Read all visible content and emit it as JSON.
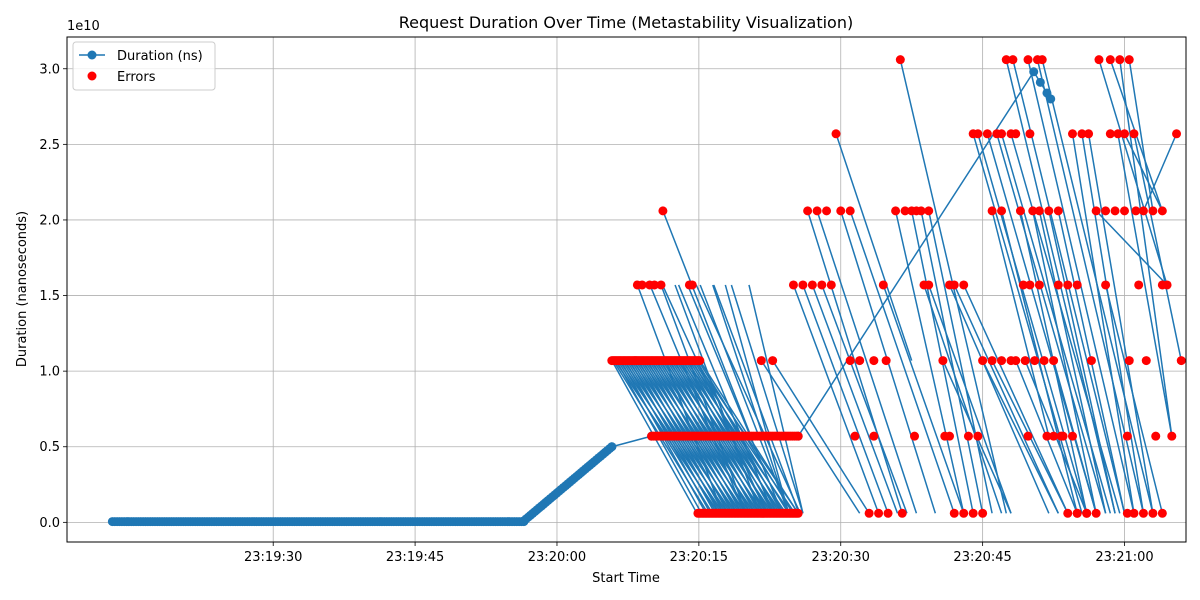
{
  "chart_data": {
    "type": "line",
    "title": "Request Duration Over Time (Metastability Visualization)",
    "xlabel": "Start Time",
    "ylabel": "Duration (nanoseconds)",
    "y_offset_label": "1e10",
    "x_tick_labels": [
      "23:19:30",
      "23:19:45",
      "23:20:00",
      "23:20:15",
      "23:20:30",
      "23:20:45",
      "23:21:00"
    ],
    "y_tick_labels": [
      "0.0",
      "0.5",
      "1.0",
      "1.5",
      "2.0",
      "2.5",
      "3.0"
    ],
    "x_ticks_seconds": [
      30,
      45,
      60,
      75,
      90,
      105,
      120
    ],
    "y_ticks": [
      0.0,
      0.5,
      1.0,
      1.5,
      2.0,
      2.5,
      3.0
    ],
    "xlim_seconds": [
      8.2,
      126.5
    ],
    "ylim": [
      -0.13,
      3.21
    ],
    "grid": true,
    "legend_position": "top-left",
    "series": [
      {
        "name": "Duration (ns)",
        "color": "#1f77b4",
        "marker": "circle",
        "baseline_phase": {
          "x_start": 13,
          "x_end": 56.5,
          "y": 0.005
        },
        "ramp_phase": {
          "x_start": 56.5,
          "x_end": 65.8,
          "y_start": 0.01,
          "y_end": 0.5
        },
        "points": [
          {
            "x": 65.8,
            "y": 0.5
          },
          {
            "x": 70.0,
            "y": 0.57
          },
          {
            "x": 80.0,
            "y": 0.57
          },
          {
            "x": 85.5,
            "y": 0.57
          },
          {
            "x": 110.4,
            "y": 2.98
          },
          {
            "x": 111.1,
            "y": 2.91
          },
          {
            "x": 111.8,
            "y": 2.84
          },
          {
            "x": 112.2,
            "y": 2.8
          }
        ],
        "collapse_segments": [
          {
            "x_start": 65.8,
            "x_end": 85.5,
            "y_start": 1.07,
            "y_end": 0.06,
            "count": 60
          },
          {
            "x_start": 68.5,
            "x_end": 84.5,
            "y_start": 1.57,
            "y_end": 0.06,
            "count": 8
          },
          {
            "x_start": 71.0,
            "x_end": 86.0,
            "y_start": 1.57,
            "y_end": 0.06,
            "count": 6
          }
        ]
      },
      {
        "name": "Errors",
        "color": "#ff0000",
        "marker": "circle",
        "bands": [
          {
            "y": 1.07,
            "x_start": 65.8,
            "x_end": 75.1,
            "count": 70
          },
          {
            "y": 0.57,
            "x_start": 70.0,
            "x_end": 85.5,
            "count": 80
          },
          {
            "y": 0.06,
            "x_start": 74.9,
            "x_end": 85.5,
            "count": 70
          }
        ],
        "points": [
          {
            "x": 68.5,
            "y": 1.57
          },
          {
            "x": 69.0,
            "y": 1.57
          },
          {
            "x": 69.8,
            "y": 1.57
          },
          {
            "x": 70.3,
            "y": 1.57
          },
          {
            "x": 71.0,
            "y": 1.57
          },
          {
            "x": 74.0,
            "y": 1.57
          },
          {
            "x": 74.3,
            "y": 1.57
          },
          {
            "x": 71.2,
            "y": 2.06
          },
          {
            "x": 81.6,
            "y": 1.07
          },
          {
            "x": 82.8,
            "y": 1.07
          },
          {
            "x": 85.0,
            "y": 1.57
          },
          {
            "x": 86.0,
            "y": 1.57
          },
          {
            "x": 87.0,
            "y": 1.57
          },
          {
            "x": 88.0,
            "y": 1.57
          },
          {
            "x": 89.0,
            "y": 1.57
          },
          {
            "x": 86.5,
            "y": 2.06
          },
          {
            "x": 87.5,
            "y": 2.06
          },
          {
            "x": 88.5,
            "y": 2.06
          },
          {
            "x": 90.0,
            "y": 2.06
          },
          {
            "x": 91.0,
            "y": 2.06
          },
          {
            "x": 89.5,
            "y": 2.57
          },
          {
            "x": 91.0,
            "y": 1.07
          },
          {
            "x": 92.0,
            "y": 1.07
          },
          {
            "x": 93.5,
            "y": 1.07
          },
          {
            "x": 94.8,
            "y": 1.07
          },
          {
            "x": 91.5,
            "y": 0.57
          },
          {
            "x": 93.5,
            "y": 0.57
          },
          {
            "x": 93.0,
            "y": 0.06
          },
          {
            "x": 94.0,
            "y": 0.06
          },
          {
            "x": 95.0,
            "y": 0.06
          },
          {
            "x": 96.5,
            "y": 0.06
          },
          {
            "x": 94.5,
            "y": 1.57
          },
          {
            "x": 95.8,
            "y": 2.06
          },
          {
            "x": 96.8,
            "y": 2.06
          },
          {
            "x": 97.5,
            "y": 2.06
          },
          {
            "x": 98.0,
            "y": 2.06
          },
          {
            "x": 98.5,
            "y": 2.06
          },
          {
            "x": 99.3,
            "y": 2.06
          },
          {
            "x": 96.3,
            "y": 3.06
          },
          {
            "x": 97.8,
            "y": 0.57
          },
          {
            "x": 98.8,
            "y": 1.57
          },
          {
            "x": 99.3,
            "y": 1.57
          },
          {
            "x": 100.8,
            "y": 1.07
          },
          {
            "x": 101.0,
            "y": 0.57
          },
          {
            "x": 101.5,
            "y": 0.57
          },
          {
            "x": 102.0,
            "y": 0.06
          },
          {
            "x": 103.0,
            "y": 0.06
          },
          {
            "x": 104.0,
            "y": 0.06
          },
          {
            "x": 105.0,
            "y": 0.06
          },
          {
            "x": 101.5,
            "y": 1.57
          },
          {
            "x": 102.0,
            "y": 1.57
          },
          {
            "x": 103.0,
            "y": 1.57
          },
          {
            "x": 103.5,
            "y": 0.57
          },
          {
            "x": 104.5,
            "y": 0.57
          },
          {
            "x": 105.0,
            "y": 1.07
          },
          {
            "x": 106.0,
            "y": 1.07
          },
          {
            "x": 107.0,
            "y": 1.07
          },
          {
            "x": 108.0,
            "y": 1.07
          },
          {
            "x": 104.0,
            "y": 2.57
          },
          {
            "x": 104.5,
            "y": 2.57
          },
          {
            "x": 106.0,
            "y": 2.06
          },
          {
            "x": 107.0,
            "y": 2.06
          },
          {
            "x": 105.5,
            "y": 2.57
          },
          {
            "x": 106.5,
            "y": 2.57
          },
          {
            "x": 107.0,
            "y": 2.57
          },
          {
            "x": 108.0,
            "y": 2.57
          },
          {
            "x": 108.5,
            "y": 2.57
          },
          {
            "x": 110.0,
            "y": 2.57
          },
          {
            "x": 107.5,
            "y": 3.06
          },
          {
            "x": 108.2,
            "y": 3.06
          },
          {
            "x": 109.8,
            "y": 3.06
          },
          {
            "x": 110.8,
            "y": 3.06
          },
          {
            "x": 111.3,
            "y": 3.06
          },
          {
            "x": 109.0,
            "y": 2.06
          },
          {
            "x": 110.3,
            "y": 2.06
          },
          {
            "x": 111.0,
            "y": 2.06
          },
          {
            "x": 112.0,
            "y": 2.06
          },
          {
            "x": 113.0,
            "y": 2.06
          },
          {
            "x": 109.3,
            "y": 1.57
          },
          {
            "x": 110.0,
            "y": 1.57
          },
          {
            "x": 111.0,
            "y": 1.57
          },
          {
            "x": 108.5,
            "y": 1.07
          },
          {
            "x": 109.5,
            "y": 1.07
          },
          {
            "x": 110.5,
            "y": 1.07
          },
          {
            "x": 111.5,
            "y": 1.07
          },
          {
            "x": 112.5,
            "y": 1.07
          },
          {
            "x": 109.8,
            "y": 0.57
          },
          {
            "x": 111.8,
            "y": 0.57
          },
          {
            "x": 113.3,
            "y": 0.57
          },
          {
            "x": 114.0,
            "y": 0.06
          },
          {
            "x": 115.0,
            "y": 0.06
          },
          {
            "x": 116.0,
            "y": 0.06
          },
          {
            "x": 117.0,
            "y": 0.06
          },
          {
            "x": 112.5,
            "y": 0.57
          },
          {
            "x": 113.5,
            "y": 0.57
          },
          {
            "x": 114.5,
            "y": 0.57
          },
          {
            "x": 115.0,
            "y": 0.06
          },
          {
            "x": 116.0,
            "y": 0.06
          },
          {
            "x": 113.0,
            "y": 1.57
          },
          {
            "x": 114.0,
            "y": 1.57
          },
          {
            "x": 115.0,
            "y": 1.57
          },
          {
            "x": 114.5,
            "y": 2.57
          },
          {
            "x": 115.5,
            "y": 2.57
          },
          {
            "x": 116.2,
            "y": 2.57
          },
          {
            "x": 116.5,
            "y": 1.07
          },
          {
            "x": 117.0,
            "y": 2.06
          },
          {
            "x": 118.0,
            "y": 2.06
          },
          {
            "x": 119.0,
            "y": 2.06
          },
          {
            "x": 120.0,
            "y": 2.06
          },
          {
            "x": 117.3,
            "y": 3.06
          },
          {
            "x": 118.5,
            "y": 3.06
          },
          {
            "x": 119.5,
            "y": 3.06
          },
          {
            "x": 120.5,
            "y": 3.06
          },
          {
            "x": 118.0,
            "y": 1.57
          },
          {
            "x": 120.5,
            "y": 1.07
          },
          {
            "x": 118.5,
            "y": 2.57
          },
          {
            "x": 119.3,
            "y": 2.57
          },
          {
            "x": 120.0,
            "y": 2.57
          },
          {
            "x": 121.0,
            "y": 2.57
          },
          {
            "x": 121.5,
            "y": 1.57
          },
          {
            "x": 120.3,
            "y": 0.57
          },
          {
            "x": 120.3,
            "y": 0.06
          },
          {
            "x": 121.0,
            "y": 0.06
          },
          {
            "x": 122.0,
            "y": 0.06
          },
          {
            "x": 123.0,
            "y": 0.06
          },
          {
            "x": 124.0,
            "y": 0.06
          },
          {
            "x": 121.2,
            "y": 2.06
          },
          {
            "x": 122.0,
            "y": 2.06
          },
          {
            "x": 123.0,
            "y": 2.06
          },
          {
            "x": 124.0,
            "y": 2.06
          },
          {
            "x": 122.3,
            "y": 1.07
          },
          {
            "x": 123.3,
            "y": 0.57
          },
          {
            "x": 124.0,
            "y": 1.57
          },
          {
            "x": 124.5,
            "y": 1.57
          },
          {
            "x": 125.0,
            "y": 0.57
          },
          {
            "x": 125.5,
            "y": 2.57
          },
          {
            "x": 126.0,
            "y": 1.07
          }
        ],
        "connections": [
          [
            71.2,
            2.06,
            80.5,
            0.57
          ],
          [
            89.5,
            2.57,
            97.5,
            1.07
          ],
          [
            96.3,
            3.06,
            107.5,
            0.06
          ],
          [
            86.5,
            2.06,
            96.5,
            0.06
          ],
          [
            87.5,
            2.06,
            98.0,
            0.06
          ],
          [
            90.0,
            2.06,
            100.0,
            0.06
          ],
          [
            91.0,
            2.06,
            102.0,
            0.06
          ],
          [
            95.8,
            2.06,
            103.0,
            0.06
          ],
          [
            97.5,
            2.06,
            104.0,
            0.06
          ],
          [
            98.5,
            2.06,
            105.0,
            0.06
          ],
          [
            99.3,
            2.06,
            106.0,
            0.06
          ],
          [
            85.0,
            1.57,
            94.0,
            0.06
          ],
          [
            86.0,
            1.57,
            95.0,
            0.06
          ],
          [
            87.0,
            1.57,
            96.0,
            0.06
          ],
          [
            88.0,
            1.57,
            97.0,
            0.06
          ],
          [
            81.6,
            1.07,
            92.0,
            0.06
          ],
          [
            82.8,
            1.07,
            93.0,
            0.06
          ],
          [
            101.5,
            1.57,
            112.0,
            0.06
          ],
          [
            102.0,
            1.57,
            113.0,
            0.06
          ],
          [
            103.0,
            1.57,
            114.0,
            0.06
          ],
          [
            104.0,
            2.57,
            115.5,
            0.06
          ],
          [
            104.5,
            2.57,
            116.0,
            0.06
          ],
          [
            105.5,
            2.57,
            117.0,
            0.06
          ],
          [
            106.5,
            2.57,
            118.0,
            0.06
          ],
          [
            107.0,
            2.57,
            118.5,
            0.06
          ],
          [
            108.0,
            2.57,
            119.5,
            0.06
          ],
          [
            106.0,
            2.06,
            112.0,
            0.57
          ],
          [
            107.0,
            2.06,
            115.0,
            0.06
          ],
          [
            107.5,
            3.06,
            119.0,
            0.06
          ],
          [
            108.2,
            3.06,
            120.0,
            0.06
          ],
          [
            109.8,
            3.06,
            121.0,
            0.06
          ],
          [
            110.8,
            3.06,
            122.0,
            0.06
          ],
          [
            111.3,
            3.06,
            123.0,
            0.06
          ],
          [
            109.0,
            2.06,
            116.0,
            0.06
          ],
          [
            110.3,
            2.06,
            117.0,
            0.06
          ],
          [
            111.0,
            2.06,
            118.0,
            0.06
          ],
          [
            112.0,
            2.06,
            119.0,
            0.06
          ],
          [
            113.0,
            2.06,
            120.0,
            0.06
          ],
          [
            114.5,
            2.57,
            121.0,
            0.06
          ],
          [
            115.5,
            2.57,
            122.0,
            0.06
          ],
          [
            116.2,
            2.57,
            123.0,
            0.06
          ],
          [
            117.3,
            3.06,
            124.5,
            1.57
          ],
          [
            118.5,
            3.06,
            124.0,
            2.06
          ],
          [
            119.5,
            3.06,
            125.0,
            0.57
          ],
          [
            120.5,
            3.06,
            123.0,
            2.06
          ],
          [
            117.0,
            2.06,
            124.5,
            1.57
          ],
          [
            118.0,
            1.57,
            124.0,
            0.06
          ],
          [
            119.3,
            2.57,
            125.0,
            0.57
          ],
          [
            120.0,
            2.57,
            124.0,
            2.06
          ],
          [
            121.0,
            2.57,
            126.0,
            1.07
          ],
          [
            122.0,
            2.06,
            125.5,
            2.57
          ],
          [
            94.5,
            1.57,
            103.0,
            0.06
          ],
          [
            98.8,
            1.57,
            107.0,
            0.06
          ],
          [
            99.3,
            1.57,
            108.0,
            0.06
          ],
          [
            100.8,
            1.07,
            108.0,
            0.06
          ],
          [
            105.0,
            1.07,
            113.0,
            0.06
          ],
          [
            106.0,
            1.07,
            114.0,
            0.06
          ],
          [
            108.5,
            1.07,
            115.0,
            0.06
          ],
          [
            109.5,
            1.07,
            116.0,
            0.06
          ],
          [
            112.5,
            1.07,
            117.0,
            0.06
          ]
        ]
      }
    ]
  }
}
